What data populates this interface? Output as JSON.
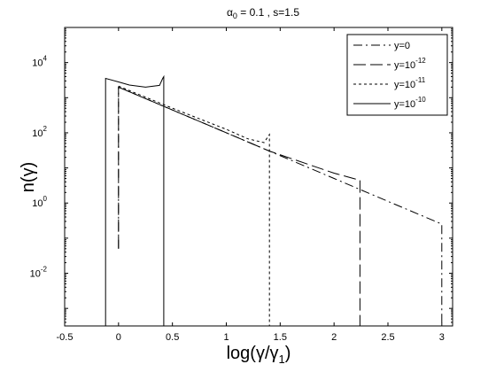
{
  "chart_data": {
    "type": "line",
    "title_html": "α<sub>0</sub> = 0.1 , s=1.5",
    "title_parts": {
      "alpha": "α",
      "sub": "0",
      "rest": " = 0.1 , s=1.5"
    },
    "xlabel": {
      "pre": "log(γ/γ",
      "sub": "1",
      "post": ")"
    },
    "ylabel": "n(γ)",
    "xlim": [
      -0.5,
      3.1
    ],
    "ylim_log10": [
      -3.5,
      5
    ],
    "y_scale": "log",
    "x_ticks": [
      "-0.5",
      "0",
      "0.5",
      "1",
      "1.5",
      "2",
      "2.5",
      "3"
    ],
    "x_tick_values": [
      -0.5,
      0,
      0.5,
      1,
      1.5,
      2,
      2.5,
      3
    ],
    "y_ticks": [
      {
        "exp": -2,
        "base": "10",
        "sup": "-2"
      },
      {
        "exp": 0,
        "base": "10",
        "sup": "0"
      },
      {
        "exp": 2,
        "base": "10",
        "sup": "2"
      },
      {
        "exp": 4,
        "base": "10",
        "sup": "4"
      }
    ],
    "grid": false,
    "legend_position": "top-right",
    "series": [
      {
        "name_base": "y=0",
        "name_sup": "",
        "dash": "10,4,2,4",
        "points": [
          [
            0.0,
            -1.3
          ],
          [
            0.0,
            3.3
          ],
          [
            0.5,
            2.65
          ],
          [
            1.0,
            2.0
          ],
          [
            1.4,
            1.48
          ],
          [
            2.0,
            0.7
          ],
          [
            2.5,
            0.05
          ],
          [
            3.0,
            -0.6
          ],
          [
            3.0,
            -3.5
          ]
        ]
      },
      {
        "name_base": "y=10",
        "name_sup": "-12",
        "dash": "14,5",
        "points": [
          [
            0.0,
            -1.3
          ],
          [
            0.0,
            3.3
          ],
          [
            0.5,
            2.65
          ],
          [
            1.0,
            2.0
          ],
          [
            1.4,
            1.48
          ],
          [
            2.0,
            0.85
          ],
          [
            2.24,
            0.65
          ],
          [
            2.24,
            0.45
          ],
          [
            2.24,
            -3.5
          ]
        ]
      },
      {
        "name_base": "y=10",
        "name_sup": "-11",
        "dash": "3,3",
        "points": [
          [
            0.0,
            3.33
          ],
          [
            0.5,
            2.7
          ],
          [
            1.0,
            2.1
          ],
          [
            1.2,
            1.83
          ],
          [
            1.35,
            1.72
          ],
          [
            1.4,
            1.95
          ],
          [
            1.4,
            -3.5
          ]
        ]
      },
      {
        "name_base": "y=10",
        "name_sup": "-10",
        "dash": "",
        "points": [
          [
            -0.12,
            -3.5
          ],
          [
            -0.12,
            3.55
          ],
          [
            0.0,
            3.45
          ],
          [
            0.1,
            3.36
          ],
          [
            0.25,
            3.3
          ],
          [
            0.38,
            3.35
          ],
          [
            0.41,
            3.55
          ],
          [
            0.42,
            3.6
          ],
          [
            0.42,
            -3.5
          ]
        ]
      }
    ]
  }
}
